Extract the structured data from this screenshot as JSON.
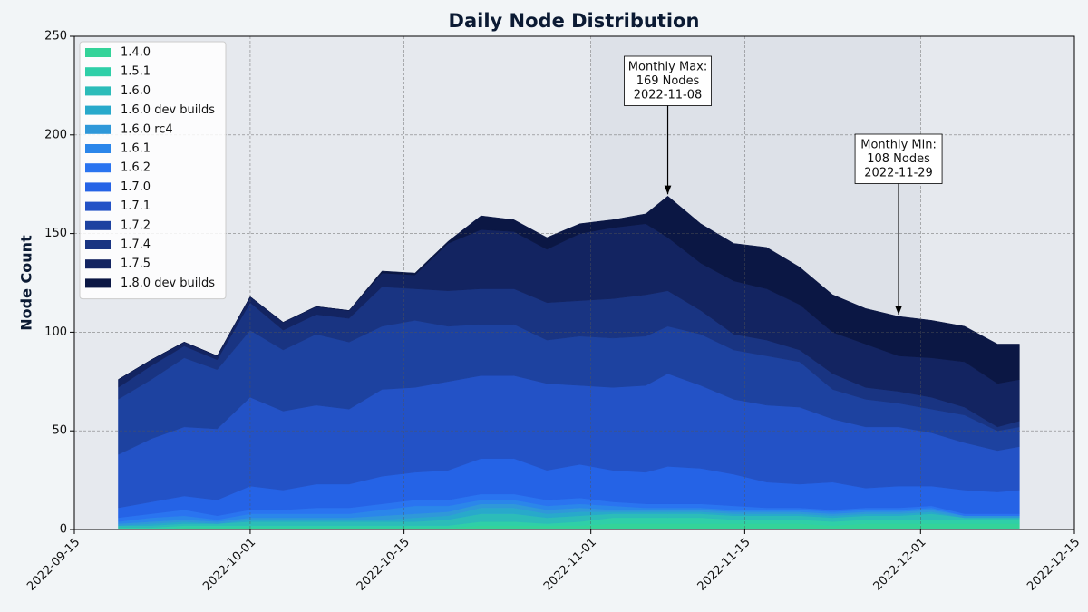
{
  "chart_data": {
    "type": "stacked_area",
    "title": "Daily Node Distribution",
    "y_label": "Node Count",
    "x": [
      "2022-09-19",
      "2022-09-22",
      "2022-09-25",
      "2022-09-28",
      "2022-10-01",
      "2022-10-04",
      "2022-10-07",
      "2022-10-10",
      "2022-10-13",
      "2022-10-16",
      "2022-10-19",
      "2022-10-22",
      "2022-10-25",
      "2022-10-28",
      "2022-10-31",
      "2022-11-03",
      "2022-11-06",
      "2022-11-08",
      "2022-11-11",
      "2022-11-14",
      "2022-11-17",
      "2022-11-20",
      "2022-11-23",
      "2022-11-26",
      "2022-11-29",
      "2022-12-02",
      "2022-12-05",
      "2022-12-08",
      "2022-12-10"
    ],
    "series": [
      {
        "name": "1.4.0",
        "color": "#34d399",
        "values": [
          0,
          0,
          1,
          1,
          1,
          1,
          1,
          1,
          1,
          1,
          1,
          2,
          2,
          2,
          2,
          3,
          3,
          3,
          3,
          3,
          3,
          3,
          2,
          3,
          3,
          3,
          3,
          3,
          3
        ]
      },
      {
        "name": "1.5.1",
        "color": "#2fcfa8",
        "values": [
          1,
          1,
          1,
          1,
          1,
          1,
          1,
          1,
          1,
          1,
          1,
          2,
          2,
          1,
          2,
          3,
          3,
          3,
          3,
          2,
          2,
          2,
          2,
          2,
          2,
          2,
          2,
          2,
          2
        ]
      },
      {
        "name": "1.6.0",
        "color": "#2cbcb9",
        "values": [
          1,
          1,
          1,
          1,
          2,
          2,
          2,
          2,
          2,
          2,
          3,
          4,
          4,
          3,
          3,
          2,
          2,
          2,
          2,
          2,
          2,
          2,
          2,
          2,
          2,
          3,
          1,
          1,
          1
        ]
      },
      {
        "name": "1.6.0 dev builds",
        "color": "#28a9cb",
        "values": [
          0,
          1,
          1,
          0,
          1,
          1,
          1,
          1,
          1,
          2,
          2,
          3,
          3,
          2,
          2,
          1,
          1,
          1,
          1,
          1,
          1,
          1,
          1,
          1,
          1,
          1,
          0,
          0,
          0
        ]
      },
      {
        "name": "1.6.0 rc4",
        "color": "#2f98d9",
        "values": [
          1,
          1,
          1,
          1,
          1,
          1,
          1,
          1,
          2,
          2,
          2,
          2,
          2,
          2,
          2,
          1,
          1,
          1,
          1,
          1,
          1,
          1,
          1,
          1,
          1,
          1,
          1,
          1,
          1
        ]
      },
      {
        "name": "1.6.1",
        "color": "#2b86ea",
        "values": [
          1,
          2,
          2,
          1,
          2,
          2,
          2,
          2,
          3,
          4,
          3,
          2,
          2,
          2,
          2,
          2,
          1,
          1,
          1,
          1,
          1,
          1,
          1,
          1,
          1,
          1,
          0,
          0,
          0
        ]
      },
      {
        "name": "1.6.2",
        "color": "#2a74f0",
        "values": [
          2,
          2,
          3,
          2,
          2,
          2,
          3,
          3,
          3,
          3,
          3,
          3,
          3,
          3,
          3,
          2,
          2,
          2,
          2,
          2,
          1,
          1,
          1,
          1,
          1,
          1,
          1,
          1,
          1
        ]
      },
      {
        "name": "1.7.0",
        "color": "#2563e6",
        "values": [
          5,
          6,
          7,
          8,
          12,
          10,
          12,
          12,
          14,
          14,
          15,
          18,
          18,
          15,
          17,
          16,
          16,
          19,
          18,
          16,
          13,
          12,
          14,
          10,
          11,
          10,
          12,
          11,
          12
        ]
      },
      {
        "name": "1.7.1",
        "color": "#2352c6",
        "values": [
          27,
          32,
          35,
          36,
          45,
          40,
          40,
          38,
          44,
          43,
          45,
          42,
          42,
          44,
          40,
          42,
          44,
          47,
          42,
          38,
          39,
          39,
          32,
          31,
          30,
          27,
          24,
          21,
          22
        ]
      },
      {
        "name": "1.7.2",
        "color": "#1d42a0",
        "values": [
          28,
          30,
          35,
          30,
          34,
          31,
          36,
          34,
          32,
          34,
          28,
          26,
          26,
          22,
          25,
          25,
          25,
          24,
          26,
          25,
          25,
          23,
          15,
          14,
          12,
          12,
          14,
          10,
          10
        ]
      },
      {
        "name": "1.7.4",
        "color": "#193482",
        "values": [
          6,
          7,
          6,
          5,
          14,
          10,
          10,
          12,
          20,
          16,
          18,
          18,
          18,
          19,
          18,
          20,
          21,
          18,
          12,
          8,
          8,
          6,
          8,
          6,
          6,
          6,
          4,
          2,
          3
        ]
      },
      {
        "name": "1.7.5",
        "color": "#132461",
        "values": [
          4,
          3,
          2,
          2,
          3,
          4,
          4,
          4,
          7,
          7,
          24,
          30,
          29,
          27,
          34,
          36,
          36,
          27,
          24,
          27,
          26,
          23,
          21,
          22,
          18,
          20,
          23,
          22,
          21
        ]
      },
      {
        "name": "1.8.0 dev builds",
        "color": "#0b1744",
        "values": [
          0,
          0,
          0,
          0,
          0,
          0,
          0,
          0,
          1,
          1,
          1,
          7,
          6,
          6,
          5,
          4,
          5,
          21,
          20,
          19,
          21,
          19,
          19,
          18,
          20,
          19,
          18,
          20,
          18
        ]
      }
    ],
    "xlim": [
      "2022-09-15",
      "2022-12-15"
    ],
    "xticks": [
      "2022-09-15",
      "2022-10-01",
      "2022-10-15",
      "2022-11-01",
      "2022-11-15",
      "2022-12-01",
      "2022-12-15"
    ],
    "ylim": [
      0,
      250
    ],
    "yticks": [
      0,
      50,
      100,
      150,
      200,
      250
    ],
    "grid": true,
    "legend": "upper-left",
    "highlight_range": [
      "2022-11-01",
      "2022-12-01"
    ],
    "annotations": [
      {
        "text": [
          "Monthly Max:",
          "169 Nodes",
          "2022-11-08"
        ],
        "x": "2022-11-08",
        "y": 169
      },
      {
        "text": [
          "Monthly Min:",
          "108 Nodes",
          "2022-11-29"
        ],
        "x": "2022-11-29",
        "y": 108
      }
    ]
  }
}
